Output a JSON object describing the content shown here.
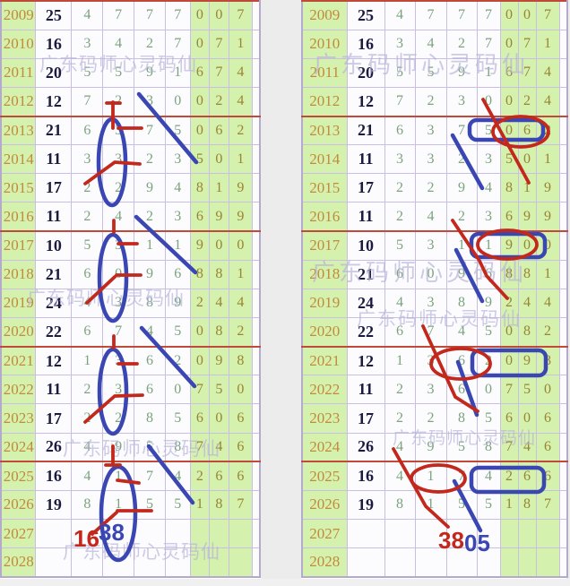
{
  "watermark": "广东码师心灵码仙",
  "chart_data": {
    "type": "table",
    "note": "same table rendered twice (left and right copies)",
    "rows": [
      {
        "year": "2009",
        "number": "25",
        "white_digits": [
          "4",
          "7",
          "7",
          "7"
        ],
        "green_digits": [
          "0",
          "0",
          "7"
        ]
      },
      {
        "year": "2010",
        "number": "16",
        "white_digits": [
          "3",
          "4",
          "2",
          "7"
        ],
        "green_digits": [
          "0",
          "7",
          "1"
        ]
      },
      {
        "year": "2011",
        "number": "20",
        "white_digits": [
          "5",
          "5",
          "9",
          "1"
        ],
        "green_digits": [
          "6",
          "7",
          "4"
        ]
      },
      {
        "year": "2012",
        "number": "12",
        "white_digits": [
          "7",
          "2",
          "3",
          "0"
        ],
        "green_digits": [
          "0",
          "2",
          "4"
        ]
      },
      {
        "year": "2013",
        "number": "21",
        "white_digits": [
          "6",
          "3",
          "7",
          "5"
        ],
        "green_digits": [
          "0",
          "6",
          "2"
        ]
      },
      {
        "year": "2014",
        "number": "11",
        "white_digits": [
          "3",
          "3",
          "2",
          "3"
        ],
        "green_digits": [
          "5",
          "0",
          "1"
        ]
      },
      {
        "year": "2015",
        "number": "17",
        "white_digits": [
          "2",
          "2",
          "9",
          "4"
        ],
        "green_digits": [
          "8",
          "1",
          "9"
        ]
      },
      {
        "year": "2016",
        "number": "11",
        "white_digits": [
          "2",
          "4",
          "2",
          "3"
        ],
        "green_digits": [
          "6",
          "9",
          "9"
        ]
      },
      {
        "year": "2017",
        "number": "10",
        "white_digits": [
          "5",
          "3",
          "1",
          "1"
        ],
        "green_digits": [
          "9",
          "0",
          "0"
        ]
      },
      {
        "year": "2018",
        "number": "21",
        "white_digits": [
          "6",
          "0",
          "9",
          "6"
        ],
        "green_digits": [
          "8",
          "8",
          "1"
        ]
      },
      {
        "year": "2019",
        "number": "24",
        "white_digits": [
          "4",
          "3",
          "8",
          "9"
        ],
        "green_digits": [
          "2",
          "4",
          "4"
        ]
      },
      {
        "year": "2020",
        "number": "22",
        "white_digits": [
          "6",
          "7",
          "4",
          "5"
        ],
        "green_digits": [
          "0",
          "8",
          "2"
        ]
      },
      {
        "year": "2021",
        "number": "12",
        "white_digits": [
          "1",
          "3",
          "6",
          "2"
        ],
        "green_digits": [
          "0",
          "9",
          "8"
        ]
      },
      {
        "year": "2022",
        "number": "11",
        "white_digits": [
          "2",
          "3",
          "6",
          "0"
        ],
        "green_digits": [
          "7",
          "5",
          "0"
        ]
      },
      {
        "year": "2023",
        "number": "17",
        "white_digits": [
          "2",
          "2",
          "8",
          "5"
        ],
        "green_digits": [
          "6",
          "0",
          "6"
        ]
      },
      {
        "year": "2024",
        "number": "26",
        "white_digits": [
          "4",
          "9",
          "5",
          "8"
        ],
        "green_digits": [
          "7",
          "4",
          "6"
        ]
      },
      {
        "year": "2025",
        "number": "16",
        "white_digits": [
          "4",
          "1",
          "7",
          "4"
        ],
        "green_digits": [
          "2",
          "6",
          "6"
        ]
      },
      {
        "year": "2026",
        "number": "19",
        "white_digits": [
          "8",
          "1",
          "5",
          "5"
        ],
        "green_digits": [
          "1",
          "8",
          "7"
        ]
      },
      {
        "year": "2027",
        "number": "",
        "white_digits": [
          "",
          "",
          "",
          ""
        ],
        "green_digits": [
          "",
          "",
          ""
        ]
      },
      {
        "year": "2028",
        "number": "",
        "white_digits": [
          "",
          "",
          "",
          ""
        ],
        "green_digits": [
          "",
          "",
          ""
        ]
      }
    ]
  },
  "annotations": {
    "left_table": {
      "red_number": "16",
      "blue_number": "38"
    },
    "right_table": {
      "red_number": "38",
      "blue_number": "05"
    }
  },
  "colors": {
    "annotation_red": "#c3281c",
    "annotation_blue": "#3a47b2",
    "separator_red": "#bf4a3a",
    "green_cell_bg": "#d5f1ae",
    "year_text": "#c28a3a",
    "bold_number_text": "#1b1b40",
    "white_cell_digit": "#7ba37d",
    "green_cell_digit": "#998433",
    "watermark_text": "#b7b3d8",
    "grid_line": "#c9bee3"
  }
}
